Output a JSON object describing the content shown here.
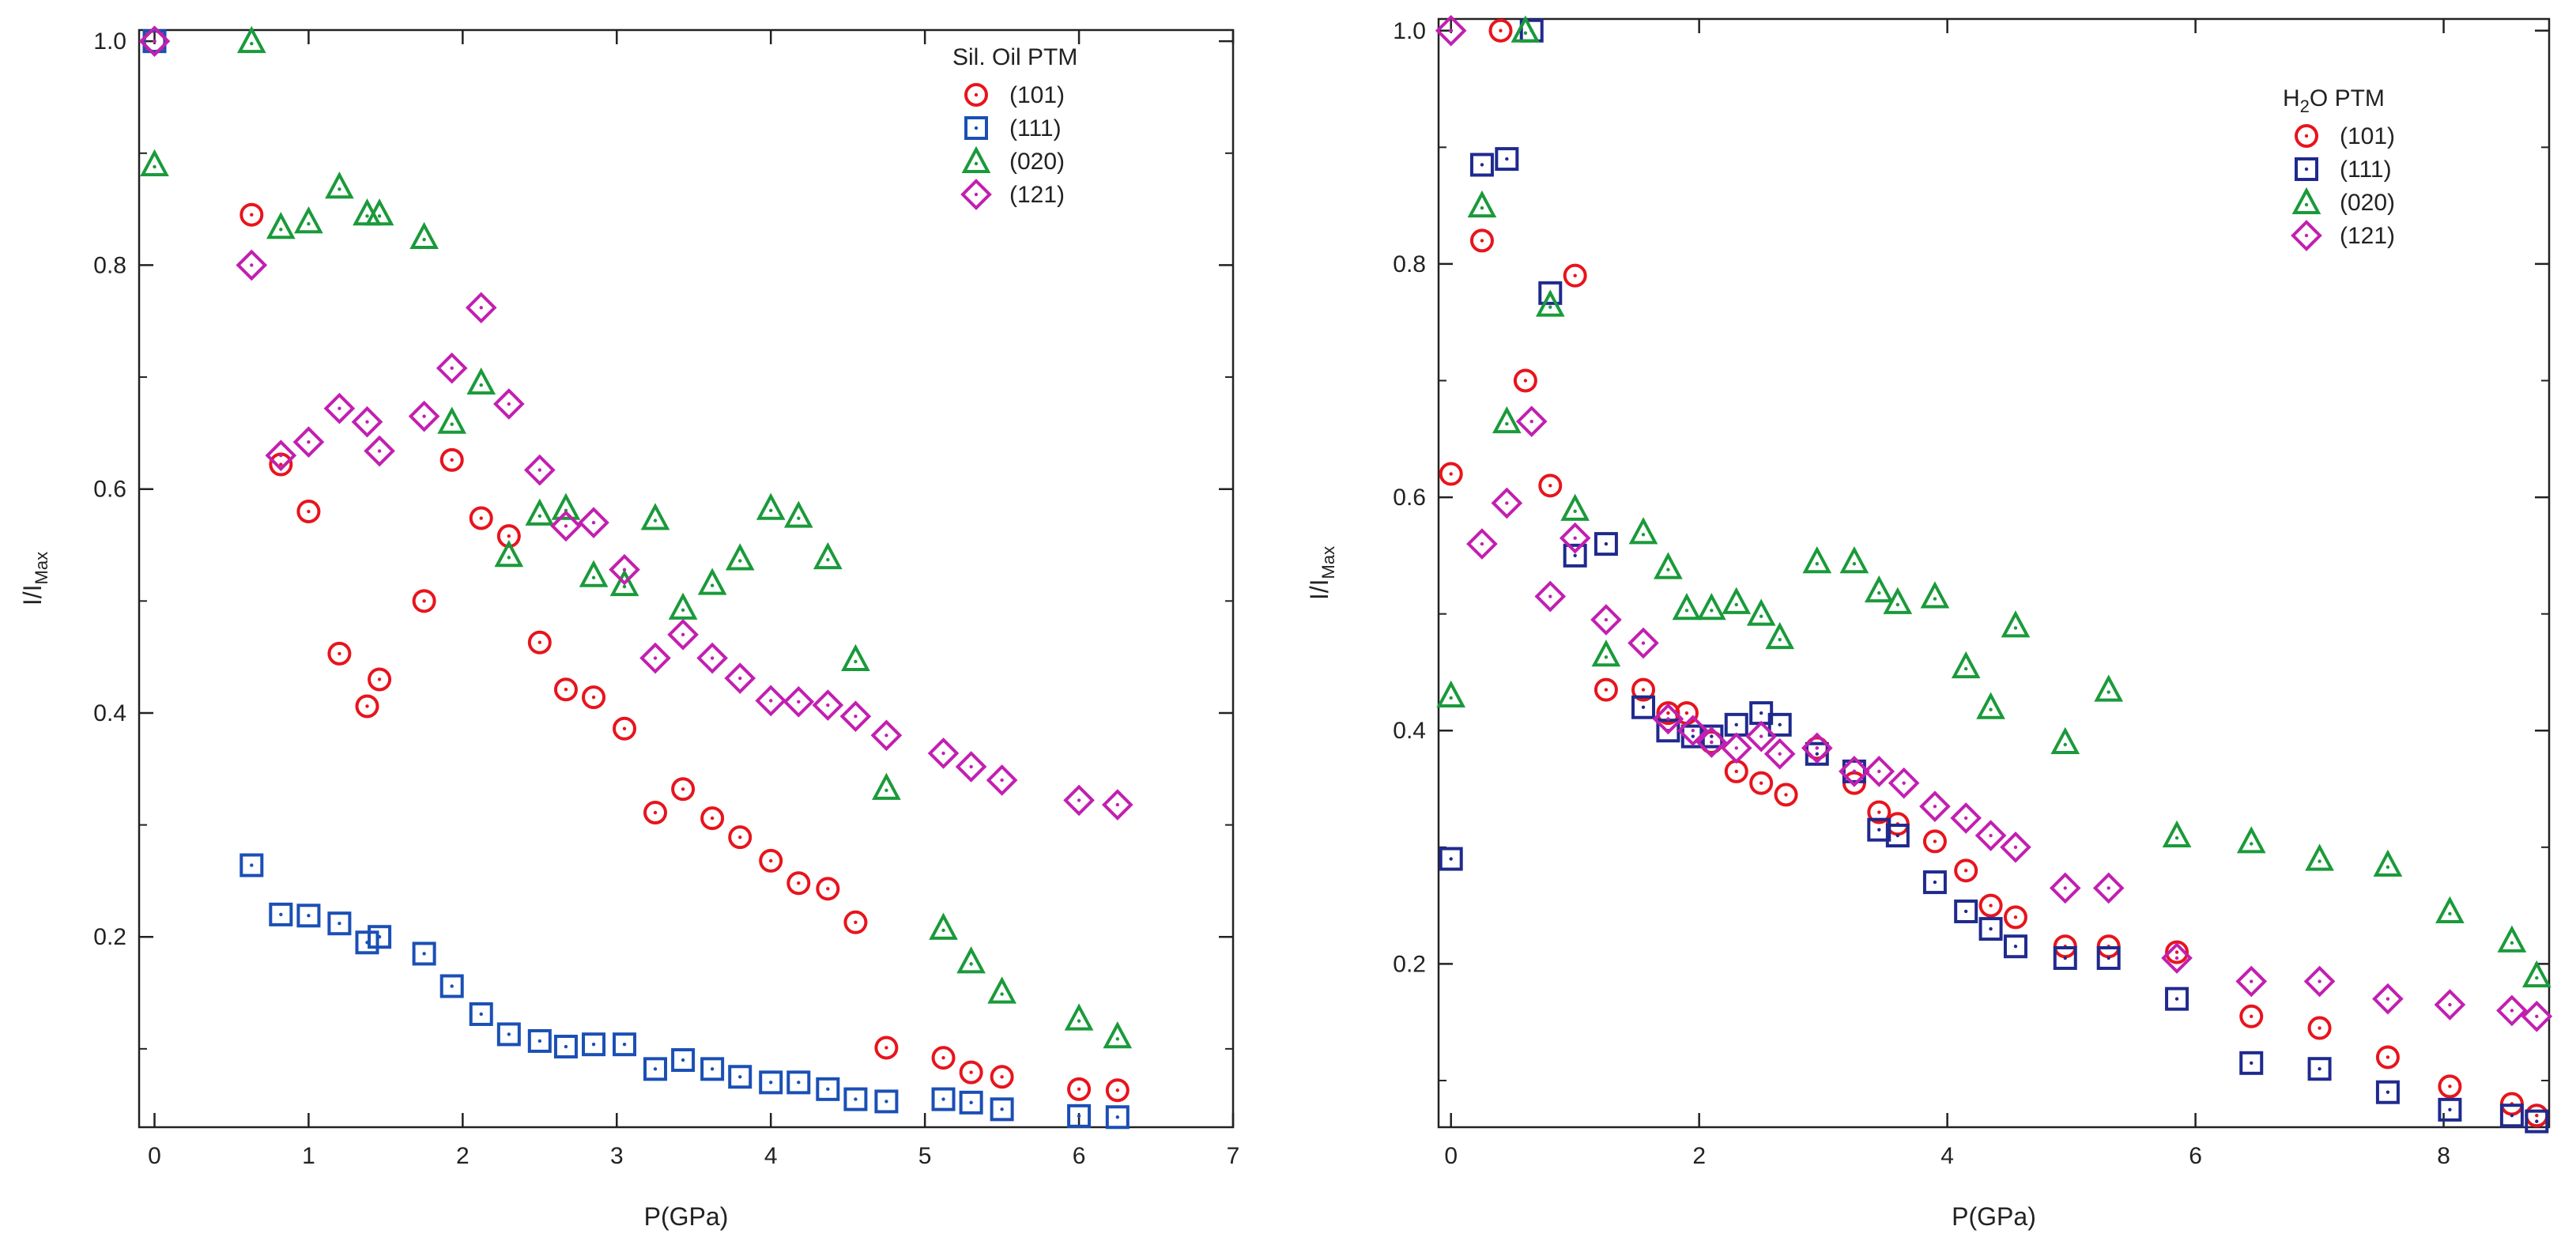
{
  "chart_data": [
    {
      "type": "scatter",
      "title": "",
      "legend_title": "Sil. Oil PTM",
      "legend_position": "top-right",
      "xlabel": "P(GPa)",
      "ylabel": "I/I",
      "ylabel_sub": "Max",
      "xlim": [
        -0.1,
        7.0
      ],
      "ylim": [
        0.03,
        1.01
      ],
      "xticks": [
        0,
        1,
        2,
        3,
        4,
        5,
        6,
        7
      ],
      "xtick_labels": [
        "0",
        "1",
        "2",
        "3",
        "4",
        "5",
        "6",
        "7"
      ],
      "yticks": [
        0.2,
        0.4,
        0.6,
        0.8,
        1.0
      ],
      "ytick_labels": [
        "0.2",
        "0.4",
        "0.6",
        "0.8",
        "1.0"
      ],
      "series": [
        {
          "name": "(101)",
          "marker": "circle",
          "color": "#e8141c",
          "x": [
            0,
            0.63,
            0.82,
            1.0,
            1.2,
            1.38,
            1.46,
            1.75,
            1.93,
            2.12,
            2.3,
            2.5,
            2.67,
            2.85,
            3.05,
            3.25,
            3.43,
            3.62,
            3.8,
            4.0,
            4.18,
            4.37,
            4.55,
            4.75,
            5.12,
            5.3,
            5.5,
            6.0,
            6.25
          ],
          "y": [
            1.0,
            0.845,
            0.622,
            0.58,
            0.453,
            0.406,
            0.43,
            0.5,
            0.626,
            0.574,
            0.558,
            0.463,
            0.421,
            0.414,
            0.386,
            0.311,
            0.332,
            0.306,
            0.289,
            0.268,
            0.248,
            0.243,
            0.213,
            0.101,
            0.092,
            0.079,
            0.075,
            0.064,
            0.063
          ]
        },
        {
          "name": "(111)",
          "marker": "square",
          "color": "#1a4fb5",
          "x": [
            0,
            0.63,
            0.82,
            1.0,
            1.2,
            1.38,
            1.46,
            1.75,
            1.93,
            2.12,
            2.3,
            2.5,
            2.67,
            2.85,
            3.05,
            3.25,
            3.43,
            3.62,
            3.8,
            4.0,
            4.18,
            4.37,
            4.55,
            4.75,
            5.12,
            5.3,
            5.5,
            6.0,
            6.25
          ],
          "y": [
            1.0,
            0.264,
            0.22,
            0.219,
            0.212,
            0.195,
            0.2,
            0.185,
            0.156,
            0.131,
            0.113,
            0.107,
            0.102,
            0.104,
            0.104,
            0.082,
            0.09,
            0.082,
            0.075,
            0.07,
            0.07,
            0.064,
            0.055,
            0.053,
            0.055,
            0.052,
            0.046,
            0.04,
            0.039
          ]
        },
        {
          "name": "(020)",
          "marker": "triangle",
          "color": "#1a9a3a",
          "x": [
            0,
            0.63,
            0.82,
            1.0,
            1.2,
            1.38,
            1.46,
            1.75,
            1.93,
            2.12,
            2.3,
            2.5,
            2.67,
            2.85,
            3.05,
            3.25,
            3.43,
            3.62,
            3.8,
            4.0,
            4.18,
            4.37,
            4.55,
            4.75,
            5.12,
            5.3,
            5.5,
            6.0,
            6.25
          ],
          "y": [
            0.89,
            1.0,
            0.834,
            0.839,
            0.87,
            0.846,
            0.846,
            0.825,
            0.66,
            0.695,
            0.541,
            0.578,
            0.583,
            0.523,
            0.515,
            0.574,
            0.494,
            0.516,
            0.538,
            0.583,
            0.576,
            0.539,
            0.448,
            0.333,
            0.208,
            0.178,
            0.151,
            0.127,
            0.111
          ]
        },
        {
          "name": "(121)",
          "marker": "diamond",
          "color": "#c21fb0",
          "x": [
            0,
            0.63,
            0.82,
            1.0,
            1.2,
            1.38,
            1.46,
            1.75,
            1.93,
            2.12,
            2.3,
            2.5,
            2.67,
            2.85,
            3.05,
            3.25,
            3.43,
            3.62,
            3.8,
            4.0,
            4.18,
            4.37,
            4.55,
            4.75,
            5.12,
            5.3,
            5.5,
            6.0,
            6.25
          ],
          "y": [
            1.0,
            0.8,
            0.63,
            0.642,
            0.672,
            0.66,
            0.634,
            0.665,
            0.708,
            0.762,
            0.676,
            0.617,
            0.567,
            0.57,
            0.528,
            0.449,
            0.47,
            0.449,
            0.431,
            0.411,
            0.41,
            0.407,
            0.397,
            0.38,
            0.364,
            0.352,
            0.34,
            0.322,
            0.318
          ]
        }
      ]
    },
    {
      "type": "scatter",
      "title": "",
      "legend_title": "H",
      "legend_title_sub": "2",
      "legend_title_rest": "O PTM",
      "legend_position": "top-right",
      "xlabel": "P(GPa)",
      "ylabel": "I/I",
      "ylabel_sub": "Max",
      "xlim": [
        -0.1,
        8.85
      ],
      "ylim": [
        0.06,
        1.01
      ],
      "xticks": [
        0,
        2,
        4,
        6,
        8
      ],
      "xtick_labels": [
        "0",
        "2",
        "4",
        "6",
        "8"
      ],
      "yticks": [
        0.2,
        0.4,
        0.6,
        0.8,
        1.0
      ],
      "ytick_labels": [
        "0.2",
        "0.4",
        "0.6",
        "0.8",
        "1.0"
      ],
      "series": [
        {
          "name": "(101)",
          "marker": "circle",
          "color": "#e8141c",
          "x": [
            0,
            0.25,
            0.4,
            0.6,
            0.8,
            1.0,
            1.25,
            1.55,
            1.75,
            1.9,
            2.1,
            2.3,
            2.5,
            2.7,
            2.95,
            3.25,
            3.45,
            3.6,
            3.9,
            4.15,
            4.35,
            4.55,
            4.95,
            5.3,
            5.85,
            6.45,
            7.0,
            7.55,
            8.05,
            8.55,
            8.75
          ],
          "y": [
            0.62,
            0.82,
            1.0,
            0.7,
            0.61,
            0.79,
            0.435,
            0.435,
            0.415,
            0.415,
            0.39,
            0.365,
            0.355,
            0.345,
            0.385,
            0.355,
            0.33,
            0.32,
            0.305,
            0.28,
            0.25,
            0.24,
            0.215,
            0.215,
            0.21,
            0.155,
            0.145,
            0.12,
            0.095,
            0.08,
            0.07
          ]
        },
        {
          "name": "(111)",
          "marker": "square",
          "color": "#1f2a8e",
          "x": [
            0,
            0.25,
            0.45,
            0.65,
            0.8,
            1.0,
            1.25,
            1.55,
            1.75,
            1.95,
            2.1,
            2.3,
            2.5,
            2.65,
            2.95,
            3.25,
            3.45,
            3.6,
            3.9,
            4.15,
            4.35,
            4.55,
            4.95,
            5.3,
            5.85,
            6.45,
            7.0,
            7.55,
            8.05,
            8.55,
            8.75
          ],
          "y": [
            0.29,
            0.885,
            0.89,
            1.0,
            0.775,
            0.55,
            0.56,
            0.42,
            0.4,
            0.395,
            0.395,
            0.405,
            0.415,
            0.405,
            0.38,
            0.365,
            0.315,
            0.31,
            0.27,
            0.245,
            0.23,
            0.215,
            0.205,
            0.205,
            0.17,
            0.115,
            0.11,
            0.09,
            0.075,
            0.07,
            0.065
          ]
        },
        {
          "name": "(020)",
          "marker": "triangle",
          "color": "#1a9a3a",
          "x": [
            0,
            0.25,
            0.45,
            0.6,
            0.8,
            1.0,
            1.25,
            1.55,
            1.75,
            1.9,
            2.1,
            2.3,
            2.5,
            2.65,
            2.95,
            3.25,
            3.45,
            3.6,
            3.9,
            4.15,
            4.35,
            4.55,
            4.95,
            5.3,
            5.85,
            6.45,
            7.0,
            7.55,
            8.05,
            8.55,
            8.75
          ],
          "y": [
            0.43,
            0.85,
            0.665,
            1.0,
            0.765,
            0.59,
            0.465,
            0.57,
            0.54,
            0.505,
            0.505,
            0.51,
            0.5,
            0.48,
            0.545,
            0.545,
            0.52,
            0.51,
            0.515,
            0.455,
            0.42,
            0.49,
            0.39,
            0.435,
            0.31,
            0.305,
            0.29,
            0.285,
            0.245,
            0.22,
            0.19
          ]
        },
        {
          "name": "(121)",
          "marker": "diamond",
          "color": "#c21fb0",
          "x": [
            0,
            0.25,
            0.45,
            0.65,
            0.8,
            1.0,
            1.25,
            1.55,
            1.75,
            1.95,
            2.1,
            2.3,
            2.5,
            2.65,
            2.95,
            3.25,
            3.45,
            3.65,
            3.9,
            4.15,
            4.35,
            4.55,
            4.95,
            5.3,
            5.85,
            6.45,
            7.0,
            7.55,
            8.05,
            8.55,
            8.75
          ],
          "y": [
            1.0,
            0.56,
            0.595,
            0.665,
            0.515,
            0.565,
            0.495,
            0.475,
            0.41,
            0.4,
            0.39,
            0.385,
            0.395,
            0.38,
            0.385,
            0.365,
            0.365,
            0.355,
            0.335,
            0.325,
            0.31,
            0.3,
            0.265,
            0.265,
            0.205,
            0.185,
            0.185,
            0.17,
            0.165,
            0.16,
            0.155
          ]
        }
      ]
    }
  ]
}
